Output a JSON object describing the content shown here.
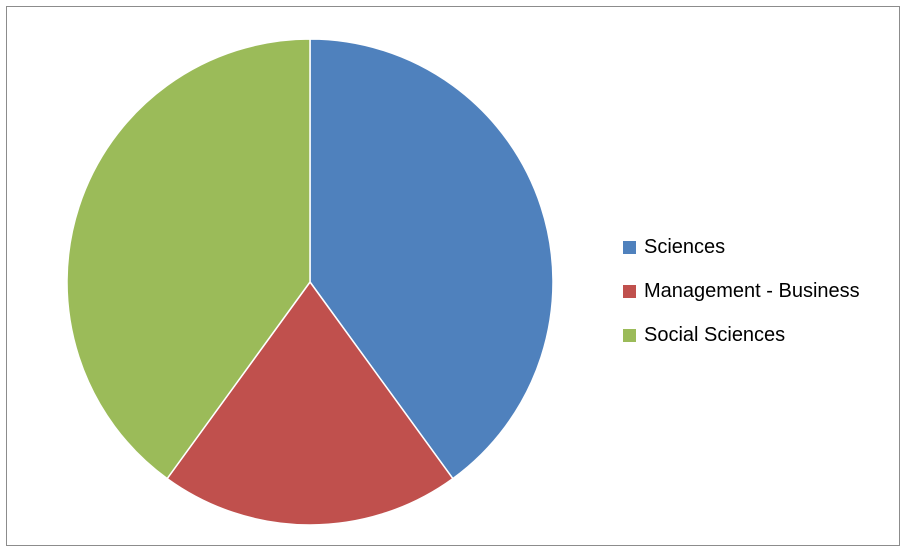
{
  "chart_data": {
    "type": "pie",
    "title": "",
    "start_angle_deg": 0,
    "direction": "clockwise",
    "slices": [
      {
        "label": "Sciences",
        "value": 40,
        "color": "#4F81BD"
      },
      {
        "label": "Management - Business",
        "value": 20,
        "color": "#C0504D"
      },
      {
        "label": "Social Sciences",
        "value": 40,
        "color": "#9BBB59"
      }
    ],
    "legend": {
      "placement": "right"
    },
    "slice_border_color": "#ffffff"
  }
}
